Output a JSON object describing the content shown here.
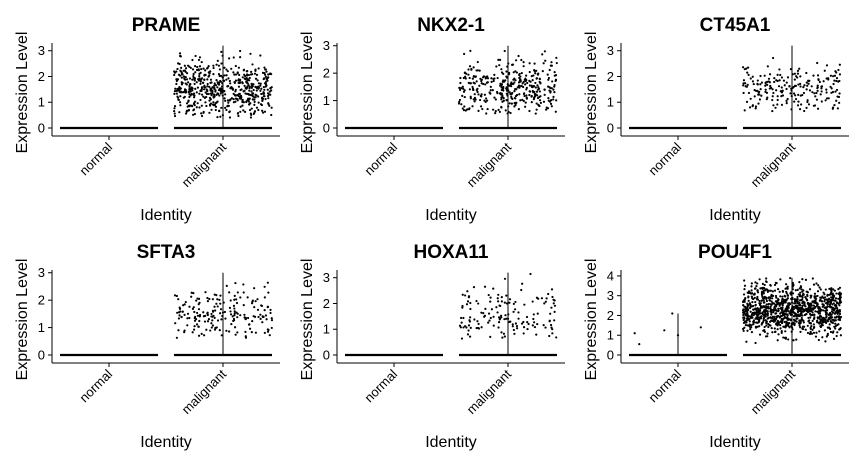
{
  "figure": {
    "colors": {
      "points": "#000000",
      "axis": "#000000",
      "background": "#ffffff"
    }
  },
  "chart_data": [
    {
      "type": "scatter",
      "title": "PRAME",
      "xlabel": "Identity",
      "ylabel": "Expression Level",
      "categories": [
        "normal",
        "malignant"
      ],
      "ylim": [
        0,
        3.3
      ],
      "yticks": [
        0,
        1,
        2,
        3
      ],
      "grid": false,
      "jitter": {
        "normal": {
          "zero_fraction": 1.0,
          "nonzero_count": 0,
          "nonzero_range": [
            0,
            0
          ]
        },
        "malignant": {
          "nonzero_count": 600,
          "nonzero_range": [
            0.4,
            3.2
          ],
          "center": 1.5
        }
      }
    },
    {
      "type": "scatter",
      "title": "NKX2-1",
      "xlabel": "Identity",
      "ylabel": "Expression Level",
      "categories": [
        "normal",
        "malignant"
      ],
      "ylim": [
        0,
        3.1
      ],
      "yticks": [
        0,
        1,
        2,
        3
      ],
      "grid": false,
      "jitter": {
        "normal": {
          "zero_fraction": 1.0,
          "nonzero_count": 0,
          "nonzero_range": [
            0,
            0
          ]
        },
        "malignant": {
          "nonzero_count": 380,
          "nonzero_range": [
            0.5,
            3.0
          ],
          "center": 1.5
        }
      }
    },
    {
      "type": "scatter",
      "title": "CT45A1",
      "xlabel": "Identity",
      "ylabel": "Expression Level",
      "categories": [
        "normal",
        "malignant"
      ],
      "ylim": [
        0,
        3.3
      ],
      "yticks": [
        0,
        1,
        2,
        3
      ],
      "grid": false,
      "jitter": {
        "normal": {
          "zero_fraction": 1.0,
          "nonzero_count": 0,
          "nonzero_range": [
            0,
            0
          ]
        },
        "malignant": {
          "nonzero_count": 220,
          "nonzero_range": [
            0.6,
            3.2
          ],
          "center": 1.6
        }
      }
    },
    {
      "type": "scatter",
      "title": "SFTA3",
      "xlabel": "Identity",
      "ylabel": "Expression Level",
      "categories": [
        "normal",
        "malignant"
      ],
      "ylim": [
        0,
        3.1
      ],
      "yticks": [
        0,
        1,
        2,
        3
      ],
      "grid": false,
      "jitter": {
        "normal": {
          "zero_fraction": 1.0,
          "nonzero_count": 0,
          "nonzero_range": [
            0,
            0
          ]
        },
        "malignant": {
          "nonzero_count": 200,
          "nonzero_range": [
            0.6,
            3.0
          ],
          "center": 1.5
        }
      }
    },
    {
      "type": "scatter",
      "title": "HOXA11",
      "xlabel": "Identity",
      "ylabel": "Expression Level",
      "categories": [
        "normal",
        "malignant"
      ],
      "ylim": [
        0,
        3.3
      ],
      "yticks": [
        0,
        1,
        2,
        3
      ],
      "grid": false,
      "jitter": {
        "normal": {
          "zero_fraction": 1.0,
          "nonzero_count": 0,
          "nonzero_range": [
            0,
            0
          ]
        },
        "malignant": {
          "nonzero_count": 150,
          "nonzero_range": [
            0.6,
            3.2
          ],
          "center": 1.6
        }
      }
    },
    {
      "type": "scatter",
      "title": "POU4F1",
      "xlabel": "Identity",
      "ylabel": "Expression Level",
      "categories": [
        "normal",
        "malignant"
      ],
      "ylim": [
        0,
        4.3
      ],
      "yticks": [
        0,
        1,
        2,
        3,
        4
      ],
      "grid": false,
      "jitter": {
        "normal": {
          "zero_fraction": 0.99,
          "nonzero_count": 6,
          "nonzero_points": [
            [
              -0.34,
              0.55
            ],
            [
              -0.38,
              1.1
            ],
            [
              -0.12,
              1.25
            ],
            [
              -0.05,
              2.1
            ],
            [
              0.0,
              1.0
            ],
            [
              0.2,
              1.4
            ]
          ]
        },
        "malignant": {
          "nonzero_count": 1100,
          "nonzero_range": [
            0.6,
            3.9
          ],
          "center": 2.3
        }
      }
    }
  ]
}
